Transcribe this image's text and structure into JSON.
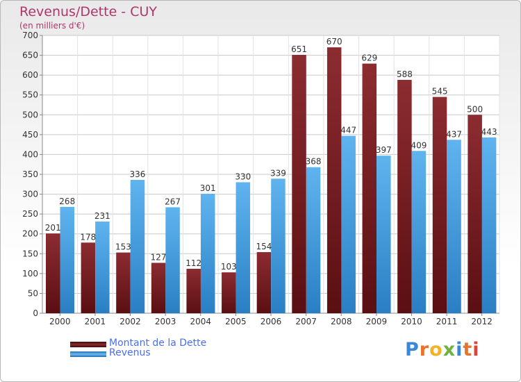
{
  "title": "Revenus/Dette - CUY",
  "subtitle": "(en milliers d'€)",
  "legend": {
    "debt_label": "Montant de la Dette",
    "revenue_label": "Revenus"
  },
  "logo": {
    "letters": [
      "P",
      "r",
      "o",
      "x",
      "i",
      "t",
      "i"
    ],
    "colors": [
      "#3a86d8",
      "#e8732a",
      "#f0b429",
      "#6db33f",
      "#3a86d8",
      "#e8732a",
      "#d9443b"
    ]
  },
  "colors": {
    "debt": "#7a1f23",
    "revenue": "#4da3e5",
    "title": "#b0356a"
  },
  "chart_data": {
    "type": "bar",
    "categories": [
      "2000",
      "2001",
      "2002",
      "2003",
      "2004",
      "2005",
      "2006",
      "2007",
      "2008",
      "2009",
      "2010",
      "2011",
      "2012"
    ],
    "series": [
      {
        "name": "Montant de la Dette",
        "values": [
          201,
          178,
          153,
          127,
          112,
          103,
          154,
          651,
          670,
          629,
          588,
          545,
          500
        ]
      },
      {
        "name": "Revenus",
        "values": [
          268,
          231,
          336,
          267,
          301,
          330,
          339,
          368,
          447,
          397,
          409,
          437,
          443
        ]
      }
    ],
    "ylim": [
      0,
      700
    ],
    "yticks": [
      0,
      50,
      100,
      150,
      200,
      250,
      300,
      350,
      400,
      450,
      500,
      550,
      600,
      650,
      700
    ],
    "grid": true,
    "legend_position": "bottom-left"
  }
}
